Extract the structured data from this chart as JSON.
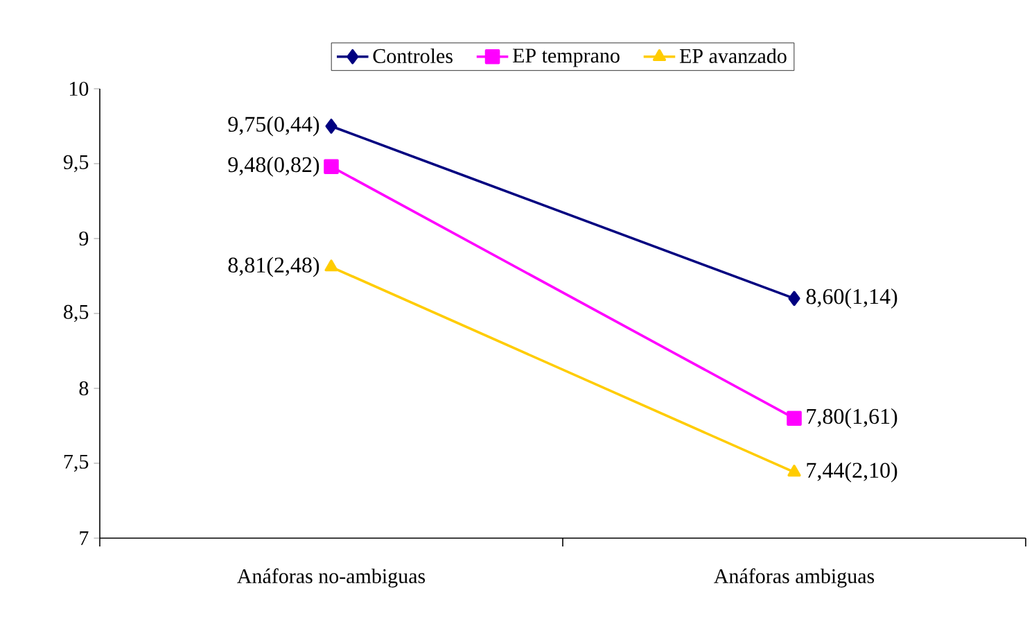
{
  "chart_data": {
    "type": "line",
    "categories": [
      "Anáforas no-ambiguas",
      "Anáforas ambiguas"
    ],
    "series": [
      {
        "name": "Controles",
        "color": "#000080",
        "marker": "diamond",
        "values": [
          9.75,
          8.6
        ],
        "value_labels": [
          "9,75(0,44)",
          "8,60(1,14)"
        ]
      },
      {
        "name": "EP temprano",
        "color": "#ff00ff",
        "marker": "square",
        "values": [
          9.48,
          7.8
        ],
        "value_labels": [
          "9,48(0,82)",
          "7,80(1,61)"
        ]
      },
      {
        "name": "EP avanzado",
        "color": "#ffcc00",
        "marker": "triangle",
        "values": [
          8.81,
          7.44
        ],
        "value_labels": [
          "8,81(2,48)",
          "7,44(2,10)"
        ]
      }
    ],
    "ylim": [
      7,
      10
    ],
    "yticks": [
      7,
      {
        "value": 7.5,
        "label": "7,5"
      },
      8,
      {
        "value": 8.5,
        "label": "8,5"
      },
      9,
      {
        "value": 9.5,
        "label": "9,5"
      },
      10
    ],
    "grid": false,
    "legend": "top",
    "line_style": "solid"
  }
}
